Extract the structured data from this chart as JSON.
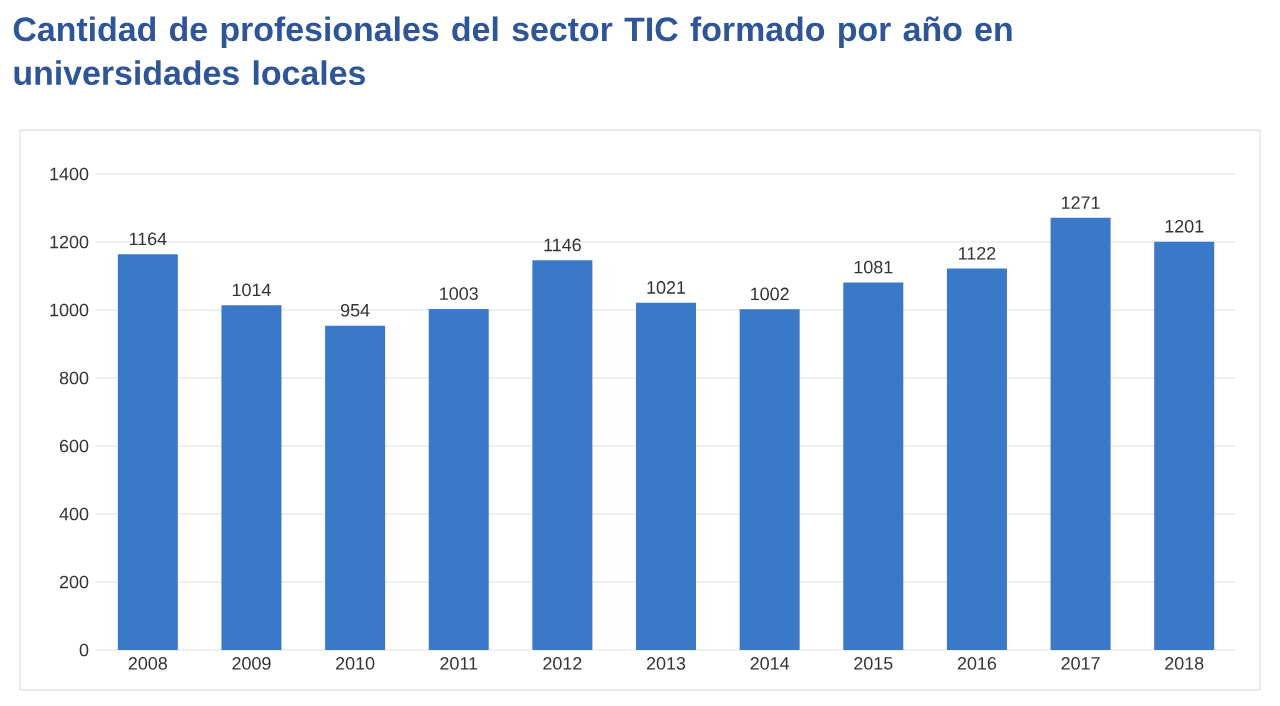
{
  "chart_data": {
    "type": "bar",
    "title": "Cantidad de profesionales del sector TIC formado por año en universidades locales",
    "categories": [
      "2008",
      "2009",
      "2010",
      "2011",
      "2012",
      "2013",
      "2014",
      "2015",
      "2016",
      "2017",
      "2018"
    ],
    "values": [
      1164,
      1014,
      954,
      1003,
      1146,
      1021,
      1002,
      1081,
      1122,
      1271,
      1201
    ],
    "color": "#3a78c8",
    "ylim": [
      0,
      1400
    ],
    "yticks": [
      0,
      200,
      400,
      600,
      800,
      1000,
      1200,
      1400
    ],
    "grid": "y",
    "data_labels": true
  }
}
